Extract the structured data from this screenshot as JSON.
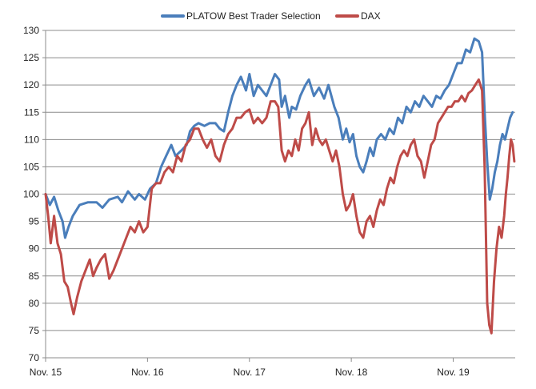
{
  "chart_data": {
    "type": "line",
    "title": "",
    "xlabel": "",
    "ylabel": "",
    "ylim": [
      70,
      130
    ],
    "yticks": [
      70,
      75,
      80,
      85,
      90,
      95,
      100,
      105,
      110,
      115,
      120,
      125,
      130
    ],
    "xlim": [
      0,
      54
    ],
    "xticks": [
      {
        "x": 0,
        "label": "Nov. 15"
      },
      {
        "x": 12,
        "label": "Nov. 16"
      },
      {
        "x": 24,
        "label": "Nov. 17"
      },
      {
        "x": 36,
        "label": "Nov. 18"
      },
      {
        "x": 48,
        "label": "Nov. 19"
      }
    ],
    "grid": "horizontal",
    "legend_position": "top",
    "series": [
      {
        "name": "PLATOW Best Trader Selection",
        "color": "#4a7ebb",
        "points": [
          [
            0,
            100
          ],
          [
            0.5,
            98
          ],
          [
            1,
            99.5
          ],
          [
            1.5,
            97
          ],
          [
            2,
            95
          ],
          [
            2.3,
            92
          ],
          [
            2.7,
            94
          ],
          [
            3.2,
            96
          ],
          [
            4,
            98
          ],
          [
            5,
            98.5
          ],
          [
            6,
            98.5
          ],
          [
            6.7,
            97.5
          ],
          [
            7.5,
            99
          ],
          [
            8.5,
            99.5
          ],
          [
            9,
            98.5
          ],
          [
            9.7,
            100.5
          ],
          [
            10.5,
            99
          ],
          [
            11,
            100
          ],
          [
            11.7,
            99
          ],
          [
            12.3,
            101
          ],
          [
            13,
            102
          ],
          [
            13.6,
            105
          ],
          [
            14.2,
            107
          ],
          [
            14.8,
            109
          ],
          [
            15.3,
            107
          ],
          [
            16,
            108
          ],
          [
            16.6,
            109
          ],
          [
            17,
            111.5
          ],
          [
            17.5,
            112.5
          ],
          [
            18,
            113
          ],
          [
            18.7,
            112.5
          ],
          [
            19.3,
            113
          ],
          [
            20,
            113
          ],
          [
            20.5,
            112
          ],
          [
            21,
            111.5
          ],
          [
            21.5,
            115
          ],
          [
            22,
            118
          ],
          [
            22.5,
            120
          ],
          [
            23,
            121.5
          ],
          [
            23.6,
            119
          ],
          [
            24,
            122
          ],
          [
            24.5,
            118
          ],
          [
            25,
            120
          ],
          [
            25.5,
            119
          ],
          [
            26,
            118
          ],
          [
            26.5,
            120
          ],
          [
            27,
            122
          ],
          [
            27.5,
            121
          ],
          [
            27.8,
            116
          ],
          [
            28.2,
            118
          ],
          [
            28.7,
            114
          ],
          [
            29,
            116
          ],
          [
            29.5,
            115.5
          ],
          [
            30,
            118
          ],
          [
            30.6,
            120
          ],
          [
            31,
            121
          ],
          [
            31.6,
            118
          ],
          [
            32.2,
            119.5
          ],
          [
            32.8,
            117.5
          ],
          [
            33.3,
            120
          ],
          [
            34,
            116
          ],
          [
            34.5,
            114
          ],
          [
            35,
            110
          ],
          [
            35.4,
            112
          ],
          [
            35.8,
            109.5
          ],
          [
            36.2,
            111
          ],
          [
            36.6,
            107
          ],
          [
            37,
            105
          ],
          [
            37.4,
            104
          ],
          [
            37.8,
            106
          ],
          [
            38.2,
            108.5
          ],
          [
            38.6,
            107
          ],
          [
            39,
            110
          ],
          [
            39.5,
            111
          ],
          [
            40,
            110
          ],
          [
            40.5,
            112
          ],
          [
            41,
            111
          ],
          [
            41.5,
            114
          ],
          [
            42,
            113
          ],
          [
            42.5,
            116
          ],
          [
            43,
            115
          ],
          [
            43.5,
            117
          ],
          [
            44,
            116
          ],
          [
            44.5,
            118
          ],
          [
            45,
            117
          ],
          [
            45.5,
            116
          ],
          [
            46,
            118
          ],
          [
            46.5,
            117.5
          ],
          [
            47,
            119
          ],
          [
            47.5,
            120
          ],
          [
            48,
            122
          ],
          [
            48.5,
            124
          ],
          [
            49,
            124
          ],
          [
            49.5,
            126.5
          ],
          [
            50,
            126
          ],
          [
            50.5,
            128.5
          ],
          [
            51,
            128
          ],
          [
            51.4,
            126
          ],
          [
            51.7,
            115
          ],
          [
            52,
            106
          ],
          [
            52.3,
            99
          ],
          [
            52.6,
            101
          ],
          [
            52.9,
            104
          ],
          [
            53.2,
            106
          ],
          [
            53.5,
            109
          ],
          [
            53.8,
            111
          ],
          [
            54.1,
            110
          ],
          [
            54.4,
            112
          ],
          [
            54.7,
            114
          ],
          [
            55,
            115
          ]
        ]
      },
      {
        "name": "DAX",
        "color": "#be4b48",
        "points": [
          [
            0,
            100
          ],
          [
            0.3,
            96
          ],
          [
            0.6,
            91
          ],
          [
            1,
            96
          ],
          [
            1.4,
            91
          ],
          [
            1.8,
            89
          ],
          [
            2.2,
            84
          ],
          [
            2.6,
            83
          ],
          [
            3,
            80
          ],
          [
            3.3,
            78
          ],
          [
            3.7,
            81
          ],
          [
            4.2,
            84
          ],
          [
            4.7,
            86
          ],
          [
            5.2,
            88
          ],
          [
            5.6,
            85
          ],
          [
            6,
            86.5
          ],
          [
            6.5,
            88
          ],
          [
            7,
            89
          ],
          [
            7.5,
            84.5
          ],
          [
            8,
            86
          ],
          [
            8.5,
            88
          ],
          [
            9,
            90
          ],
          [
            9.5,
            92
          ],
          [
            10,
            94
          ],
          [
            10.5,
            93
          ],
          [
            11,
            95
          ],
          [
            11.5,
            93
          ],
          [
            12,
            94
          ],
          [
            12.5,
            101
          ],
          [
            13,
            102
          ],
          [
            13.5,
            102
          ],
          [
            14,
            104
          ],
          [
            14.5,
            105
          ],
          [
            15,
            104
          ],
          [
            15.5,
            107
          ],
          [
            16,
            106
          ],
          [
            16.5,
            109
          ],
          [
            17,
            110
          ],
          [
            17.5,
            112
          ],
          [
            18,
            112
          ],
          [
            18.5,
            110
          ],
          [
            19,
            108.5
          ],
          [
            19.5,
            110
          ],
          [
            20,
            107
          ],
          [
            20.5,
            106
          ],
          [
            21,
            109
          ],
          [
            21.5,
            111
          ],
          [
            22,
            112
          ],
          [
            22.5,
            114
          ],
          [
            23,
            114
          ],
          [
            23.5,
            115
          ],
          [
            24,
            115.5
          ],
          [
            24.5,
            113
          ],
          [
            25,
            114
          ],
          [
            25.5,
            113
          ],
          [
            26,
            114
          ],
          [
            26.5,
            117
          ],
          [
            27,
            117
          ],
          [
            27.4,
            116
          ],
          [
            27.8,
            108
          ],
          [
            28.2,
            106
          ],
          [
            28.6,
            108
          ],
          [
            29,
            107
          ],
          [
            29.4,
            110
          ],
          [
            29.8,
            108
          ],
          [
            30.2,
            112
          ],
          [
            30.6,
            113
          ],
          [
            31,
            115
          ],
          [
            31.4,
            109
          ],
          [
            31.8,
            112
          ],
          [
            32.2,
            110
          ],
          [
            32.6,
            109
          ],
          [
            33,
            110
          ],
          [
            33.4,
            108
          ],
          [
            33.8,
            106
          ],
          [
            34.2,
            108
          ],
          [
            34.6,
            105
          ],
          [
            35,
            100
          ],
          [
            35.4,
            97
          ],
          [
            35.8,
            98
          ],
          [
            36.2,
            100
          ],
          [
            36.6,
            96
          ],
          [
            37,
            93
          ],
          [
            37.4,
            92
          ],
          [
            37.8,
            95
          ],
          [
            38.2,
            96
          ],
          [
            38.6,
            94
          ],
          [
            39,
            97
          ],
          [
            39.4,
            99
          ],
          [
            39.8,
            98
          ],
          [
            40.2,
            101
          ],
          [
            40.6,
            103
          ],
          [
            41,
            102
          ],
          [
            41.4,
            105
          ],
          [
            41.8,
            107
          ],
          [
            42.2,
            108
          ],
          [
            42.6,
            107
          ],
          [
            43,
            109
          ],
          [
            43.4,
            110
          ],
          [
            43.8,
            107
          ],
          [
            44.2,
            106
          ],
          [
            44.6,
            103
          ],
          [
            45,
            106
          ],
          [
            45.4,
            109
          ],
          [
            45.8,
            110
          ],
          [
            46.2,
            113
          ],
          [
            46.6,
            114
          ],
          [
            47,
            115
          ],
          [
            47.4,
            116
          ],
          [
            47.8,
            116
          ],
          [
            48.2,
            117
          ],
          [
            48.6,
            117
          ],
          [
            49,
            118
          ],
          [
            49.4,
            117
          ],
          [
            49.8,
            118.5
          ],
          [
            50.2,
            119
          ],
          [
            50.6,
            120
          ],
          [
            51,
            121
          ],
          [
            51.4,
            119
          ],
          [
            51.7,
            105
          ],
          [
            52,
            80
          ],
          [
            52.25,
            76
          ],
          [
            52.5,
            74.5
          ],
          [
            52.8,
            84
          ],
          [
            53.1,
            90
          ],
          [
            53.4,
            94
          ],
          [
            53.7,
            92
          ],
          [
            54,
            96
          ],
          [
            54.2,
            100
          ],
          [
            54.4,
            103
          ],
          [
            54.6,
            107
          ],
          [
            54.8,
            110
          ],
          [
            55,
            109
          ],
          [
            55.2,
            106
          ]
        ]
      }
    ]
  }
}
